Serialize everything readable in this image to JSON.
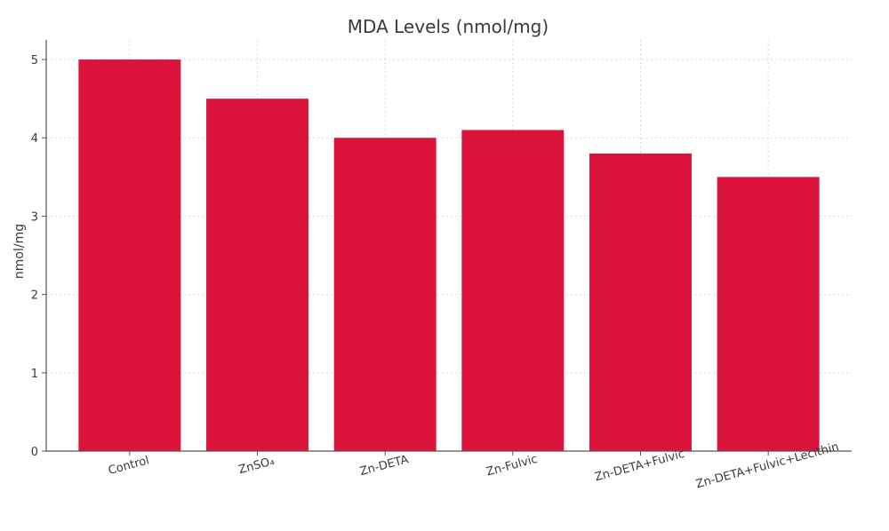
{
  "chart_data": {
    "type": "bar",
    "title": "MDA Levels (nmol/mg)",
    "xlabel": "",
    "ylabel": "nmol/mg",
    "categories": [
      "Control",
      "ZnSO₄",
      "Zn-DETA",
      "Zn-Fulvic",
      "Zn-DETA+Fulvic",
      "Zn-DETA+Fulvic+Lecithin"
    ],
    "values": [
      5.0,
      4.5,
      4.0,
      4.1,
      3.8,
      3.5
    ],
    "ylim": [
      0,
      5.25
    ],
    "yticks": [
      "0",
      "1",
      "2",
      "3",
      "4",
      "5"
    ],
    "grid": true,
    "bar_color": "#dc143c"
  }
}
